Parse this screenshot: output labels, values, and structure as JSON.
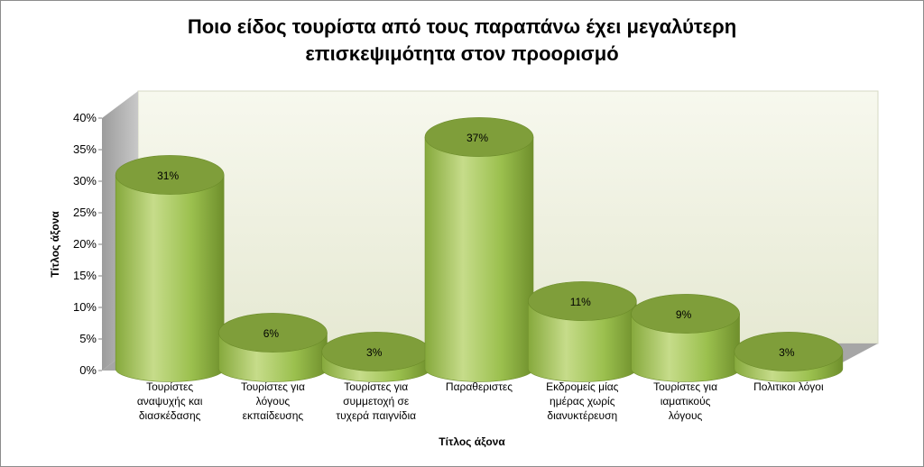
{
  "chart_data": {
    "type": "bar",
    "style": "3d-cylinder",
    "title_lines": [
      "Ποιο είδος τουρίστα  από τους παραπάνω έχει μεγαλύτερη",
      "επισκεψιμότητα στον προορισμό"
    ],
    "categories": [
      [
        "Τουρίστες",
        "αναψυχής και",
        "διασκέδασης"
      ],
      [
        "Τουρίστες  για",
        "λόγους",
        "εκπαίδευσης"
      ],
      [
        "Τουρίστες για",
        "συμμετοχή σε",
        "τυχερά παιγνίδια"
      ],
      [
        "Παραθεριστες"
      ],
      [
        "Εκδρομείς μίας",
        "ημέρας χωρίς",
        "διανυκτέρευση"
      ],
      [
        "Τουρίστες για",
        "ιαματικούς",
        "λόγους"
      ],
      [
        "Πολιτικοι λόγοι"
      ]
    ],
    "values": [
      31,
      6,
      3,
      37,
      11,
      9,
      3
    ],
    "data_labels": [
      "31%",
      "6%",
      "3%",
      "37%",
      "11%",
      "9%",
      "3%"
    ],
    "y_ticks": [
      "0%",
      "5%",
      "10%",
      "15%",
      "20%",
      "25%",
      "30%",
      "35%",
      "40%"
    ],
    "ylim": [
      0,
      40
    ],
    "xlabel": "Τίτλος άξονα",
    "ylabel": "Τίτλος άξονα",
    "colors": {
      "bar_body": "#9bc04e",
      "bar_light": "#c6dc8a",
      "bar_dark": "#6f8f2c",
      "bar_top": "#7f9e3a",
      "wall": "#f0f2e4",
      "side_wall": "#a6a6a6",
      "floor": "#9a9a9a"
    }
  }
}
